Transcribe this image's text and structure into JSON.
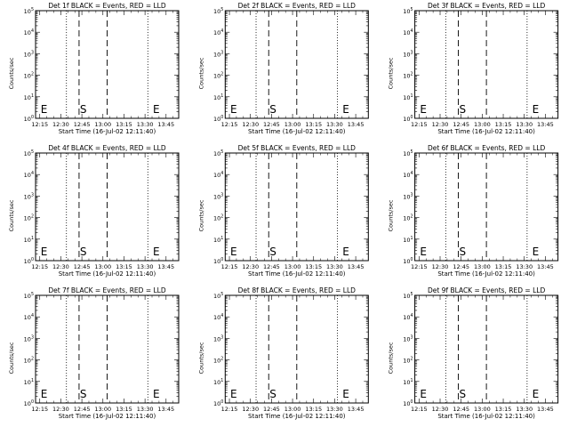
{
  "chart_data": [
    {
      "type": "line",
      "title": "Det 1f BLACK = Events, RED = LLD",
      "xlabel": "Start Time (16-Jul-02 12:11:40)",
      "ylabel": "Counts/sec",
      "xticks": [
        "12:15",
        "12:30",
        "12:45",
        "13:00",
        "13:15",
        "13:30",
        "13:45"
      ],
      "yticks": [
        {
          "base": "10",
          "exp": "0"
        },
        {
          "base": "10",
          "exp": "1"
        },
        {
          "base": "10",
          "exp": "2"
        },
        {
          "base": "10",
          "exp": "3"
        },
        {
          "base": "10",
          "exp": "4"
        },
        {
          "base": "10",
          "exp": "5"
        }
      ],
      "yscale": "log",
      "xlim_minutes": [
        -3,
        99
      ],
      "ylim": [
        1,
        100000
      ],
      "series": [],
      "dotted_lines_minutes": [
        19,
        77
      ],
      "dashed_lines_minutes": [
        28,
        48
      ],
      "markers": [
        {
          "label": "E",
          "x_minutes": 0
        },
        {
          "label": "S",
          "x_minutes": 28
        },
        {
          "label": "E",
          "x_minutes": 80
        }
      ]
    },
    {
      "type": "line",
      "title": "Det 2f BLACK = Events, RED = LLD",
      "xlabel": "Start Time (16-Jul-02 12:11:40)",
      "ylabel": "Counts/sec",
      "xticks": [
        "12:15",
        "12:30",
        "12:45",
        "13:00",
        "13:15",
        "13:30",
        "13:45"
      ],
      "yticks": [
        {
          "base": "10",
          "exp": "0"
        },
        {
          "base": "10",
          "exp": "1"
        },
        {
          "base": "10",
          "exp": "2"
        },
        {
          "base": "10",
          "exp": "3"
        },
        {
          "base": "10",
          "exp": "4"
        },
        {
          "base": "10",
          "exp": "5"
        }
      ],
      "yscale": "log",
      "xlim_minutes": [
        -3,
        99
      ],
      "ylim": [
        1,
        100000
      ],
      "series": [],
      "dotted_lines_minutes": [
        19,
        77
      ],
      "dashed_lines_minutes": [
        28,
        48
      ],
      "markers": [
        {
          "label": "E",
          "x_minutes": 0
        },
        {
          "label": "S",
          "x_minutes": 28
        },
        {
          "label": "E",
          "x_minutes": 80
        }
      ]
    },
    {
      "type": "line",
      "title": "Det 3f BLACK = Events, RED = LLD",
      "xlabel": "Start Time (16-Jul-02 12:11:40)",
      "ylabel": "Counts/sec",
      "xticks": [
        "12:15",
        "12:30",
        "12:45",
        "13:00",
        "13:15",
        "13:30",
        "13:45"
      ],
      "yticks": [
        {
          "base": "10",
          "exp": "0"
        },
        {
          "base": "10",
          "exp": "1"
        },
        {
          "base": "10",
          "exp": "2"
        },
        {
          "base": "10",
          "exp": "3"
        },
        {
          "base": "10",
          "exp": "4"
        },
        {
          "base": "10",
          "exp": "5"
        }
      ],
      "yscale": "log",
      "xlim_minutes": [
        -3,
        99
      ],
      "ylim": [
        1,
        100000
      ],
      "series": [],
      "dotted_lines_minutes": [
        19,
        77
      ],
      "dashed_lines_minutes": [
        28,
        48
      ],
      "markers": [
        {
          "label": "E",
          "x_minutes": 0
        },
        {
          "label": "S",
          "x_minutes": 28
        },
        {
          "label": "E",
          "x_minutes": 80
        }
      ]
    },
    {
      "type": "line",
      "title": "Det 4f BLACK = Events, RED = LLD",
      "xlabel": "Start Time (16-Jul-02 12:11:40)",
      "ylabel": "Counts/sec",
      "xticks": [
        "12:15",
        "12:30",
        "12:45",
        "13:00",
        "13:15",
        "13:30",
        "13:45"
      ],
      "yticks": [
        {
          "base": "10",
          "exp": "0"
        },
        {
          "base": "10",
          "exp": "1"
        },
        {
          "base": "10",
          "exp": "2"
        },
        {
          "base": "10",
          "exp": "3"
        },
        {
          "base": "10",
          "exp": "4"
        },
        {
          "base": "10",
          "exp": "5"
        }
      ],
      "yscale": "log",
      "xlim_minutes": [
        -3,
        99
      ],
      "ylim": [
        1,
        100000
      ],
      "series": [],
      "dotted_lines_minutes": [
        19,
        77
      ],
      "dashed_lines_minutes": [
        28,
        48
      ],
      "markers": [
        {
          "label": "E",
          "x_minutes": 0
        },
        {
          "label": "S",
          "x_minutes": 28
        },
        {
          "label": "E",
          "x_minutes": 80
        }
      ]
    },
    {
      "type": "line",
      "title": "Det 5f BLACK = Events, RED = LLD",
      "xlabel": "Start Time (16-Jul-02 12:11:40)",
      "ylabel": "Counts/sec",
      "xticks": [
        "12:15",
        "12:30",
        "12:45",
        "13:00",
        "13:15",
        "13:30",
        "13:45"
      ],
      "yticks": [
        {
          "base": "10",
          "exp": "0"
        },
        {
          "base": "10",
          "exp": "1"
        },
        {
          "base": "10",
          "exp": "2"
        },
        {
          "base": "10",
          "exp": "3"
        },
        {
          "base": "10",
          "exp": "4"
        },
        {
          "base": "10",
          "exp": "5"
        }
      ],
      "yscale": "log",
      "xlim_minutes": [
        -3,
        99
      ],
      "ylim": [
        1,
        100000
      ],
      "series": [],
      "dotted_lines_minutes": [
        19,
        77
      ],
      "dashed_lines_minutes": [
        28,
        48
      ],
      "markers": [
        {
          "label": "E",
          "x_minutes": 0
        },
        {
          "label": "S",
          "x_minutes": 28
        },
        {
          "label": "E",
          "x_minutes": 80
        }
      ]
    },
    {
      "type": "line",
      "title": "Det 6f BLACK = Events, RED = LLD",
      "xlabel": "Start Time (16-Jul-02 12:11:40)",
      "ylabel": "Counts/sec",
      "xticks": [
        "12:15",
        "12:30",
        "12:45",
        "13:00",
        "13:15",
        "13:30",
        "13:45"
      ],
      "yticks": [
        {
          "base": "10",
          "exp": "0"
        },
        {
          "base": "10",
          "exp": "1"
        },
        {
          "base": "10",
          "exp": "2"
        },
        {
          "base": "10",
          "exp": "3"
        },
        {
          "base": "10",
          "exp": "4"
        },
        {
          "base": "10",
          "exp": "5"
        }
      ],
      "yscale": "log",
      "xlim_minutes": [
        -3,
        99
      ],
      "ylim": [
        1,
        100000
      ],
      "series": [],
      "dotted_lines_minutes": [
        19,
        77
      ],
      "dashed_lines_minutes": [
        28,
        48
      ],
      "markers": [
        {
          "label": "E",
          "x_minutes": 0
        },
        {
          "label": "S",
          "x_minutes": 28
        },
        {
          "label": "E",
          "x_minutes": 80
        }
      ]
    },
    {
      "type": "line",
      "title": "Det 7f BLACK = Events, RED = LLD",
      "xlabel": "Start Time (16-Jul-02 12:11:40)",
      "ylabel": "Counts/sec",
      "xticks": [
        "12:15",
        "12:30",
        "12:45",
        "13:00",
        "13:15",
        "13:30",
        "13:45"
      ],
      "yticks": [
        {
          "base": "10",
          "exp": "0"
        },
        {
          "base": "10",
          "exp": "1"
        },
        {
          "base": "10",
          "exp": "2"
        },
        {
          "base": "10",
          "exp": "3"
        },
        {
          "base": "10",
          "exp": "4"
        },
        {
          "base": "10",
          "exp": "5"
        }
      ],
      "yscale": "log",
      "xlim_minutes": [
        -3,
        99
      ],
      "ylim": [
        1,
        100000
      ],
      "series": [],
      "dotted_lines_minutes": [
        19,
        77
      ],
      "dashed_lines_minutes": [
        28,
        48
      ],
      "markers": [
        {
          "label": "E",
          "x_minutes": 0
        },
        {
          "label": "S",
          "x_minutes": 28
        },
        {
          "label": "E",
          "x_minutes": 80
        }
      ]
    },
    {
      "type": "line",
      "title": "Det 8f BLACK = Events, RED = LLD",
      "xlabel": "Start Time (16-Jul-02 12:11:40)",
      "ylabel": "Counts/sec",
      "xticks": [
        "12:15",
        "12:30",
        "12:45",
        "13:00",
        "13:15",
        "13:30",
        "13:45"
      ],
      "yticks": [
        {
          "base": "10",
          "exp": "0"
        },
        {
          "base": "10",
          "exp": "1"
        },
        {
          "base": "10",
          "exp": "2"
        },
        {
          "base": "10",
          "exp": "3"
        },
        {
          "base": "10",
          "exp": "4"
        },
        {
          "base": "10",
          "exp": "5"
        }
      ],
      "yscale": "log",
      "xlim_minutes": [
        -3,
        99
      ],
      "ylim": [
        1,
        100000
      ],
      "series": [],
      "dotted_lines_minutes": [
        19,
        77
      ],
      "dashed_lines_minutes": [
        28,
        48
      ],
      "markers": [
        {
          "label": "E",
          "x_minutes": 0
        },
        {
          "label": "S",
          "x_minutes": 28
        },
        {
          "label": "E",
          "x_minutes": 80
        }
      ]
    },
    {
      "type": "line",
      "title": "Det 9f BLACK = Events, RED = LLD",
      "xlabel": "Start Time (16-Jul-02 12:11:40)",
      "ylabel": "Counts/sec",
      "xticks": [
        "12:15",
        "12:30",
        "12:45",
        "13:00",
        "13:15",
        "13:30",
        "13:45"
      ],
      "yticks": [
        {
          "base": "10",
          "exp": "0"
        },
        {
          "base": "10",
          "exp": "1"
        },
        {
          "base": "10",
          "exp": "2"
        },
        {
          "base": "10",
          "exp": "3"
        },
        {
          "base": "10",
          "exp": "4"
        },
        {
          "base": "10",
          "exp": "5"
        }
      ],
      "yscale": "log",
      "xlim_minutes": [
        -3,
        99
      ],
      "ylim": [
        1,
        100000
      ],
      "series": [],
      "dotted_lines_minutes": [
        19,
        77
      ],
      "dashed_lines_minutes": [
        28,
        48
      ],
      "markers": [
        {
          "label": "E",
          "x_minutes": 0
        },
        {
          "label": "S",
          "x_minutes": 28
        },
        {
          "label": "E",
          "x_minutes": 80
        }
      ]
    }
  ]
}
